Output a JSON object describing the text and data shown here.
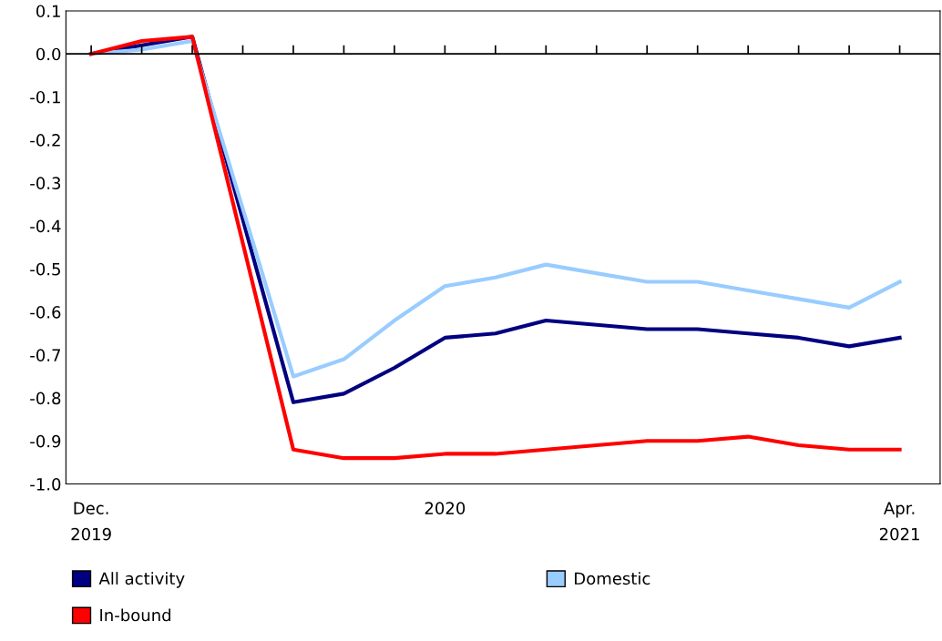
{
  "chart_data": {
    "type": "line",
    "categories": [
      "Dec.\n2019",
      null,
      null,
      null,
      null,
      null,
      null,
      "2020",
      null,
      null,
      null,
      null,
      null,
      null,
      null,
      null,
      "Apr.\n2021"
    ],
    "series": [
      {
        "name": "All activity",
        "color": "#000080",
        "values": [
          0,
          0.02,
          0.04,
          -0.385,
          -0.81,
          -0.79,
          -0.73,
          -0.66,
          -0.65,
          -0.62,
          -0.63,
          -0.64,
          -0.64,
          -0.65,
          -0.66,
          -0.68,
          -0.66
        ]
      },
      {
        "name": "Domestic",
        "color": "#99ccff",
        "values": [
          0,
          0.01,
          0.03,
          -0.36,
          -0.75,
          -0.71,
          -0.62,
          -0.54,
          -0.52,
          -0.49,
          -0.51,
          -0.53,
          -0.53,
          -0.55,
          -0.57,
          -0.59,
          -0.53
        ]
      },
      {
        "name": "In-bound",
        "color": "#ff0000",
        "values": [
          0,
          0.03,
          0.04,
          -0.44,
          -0.92,
          -0.94,
          -0.94,
          -0.93,
          -0.93,
          -0.92,
          -0.91,
          -0.9,
          -0.9,
          -0.89,
          -0.91,
          -0.92,
          -0.92
        ]
      }
    ],
    "ylim": [
      -1.0,
      0.1
    ],
    "yticks": [
      0.1,
      {
        "value": 0,
        "label": "0.0"
      },
      -0.1,
      -0.2,
      -0.3,
      -0.4,
      -0.5,
      -0.6,
      -0.7,
      -0.8,
      -0.9,
      {
        "value": -1,
        "label": "-1.0"
      }
    ],
    "ref_lines": [
      {
        "axis": "y",
        "value": 0,
        "color": "#000000"
      }
    ],
    "grid": false,
    "legend": "bottom",
    "marker": "none",
    "line_style": "solid"
  }
}
